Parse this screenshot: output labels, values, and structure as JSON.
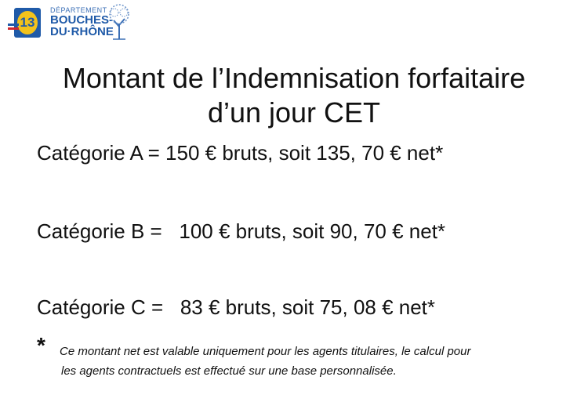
{
  "logo": {
    "dept": "DÉPARTEMENT",
    "line1": "BOUCHES-",
    "line2": "DU·RHÔNE",
    "badge": "13",
    "colors": {
      "blue": "#1f5aa8",
      "yellow": "#f2c21b",
      "red": "#d0262e"
    }
  },
  "title": {
    "line1": "Montant de l’Indemnisation forfaitaire",
    "line2": "d’un jour CET"
  },
  "categories": [
    {
      "text": "Catégorie A = 150 € bruts, soit 135, 70 € net*"
    },
    {
      "text": "Catégorie B =   100 € bruts, soit 90, 70 € net*"
    },
    {
      "text": "Catégorie C =   83 € bruts, soit 75, 08 € net*"
    }
  ],
  "footnote": {
    "marker": "*",
    "line1": "Ce montant net est valable uniquement pour les agents titulaires, le calcul pour",
    "line2": "les agents contractuels est effectué sur une base personnalisée."
  }
}
